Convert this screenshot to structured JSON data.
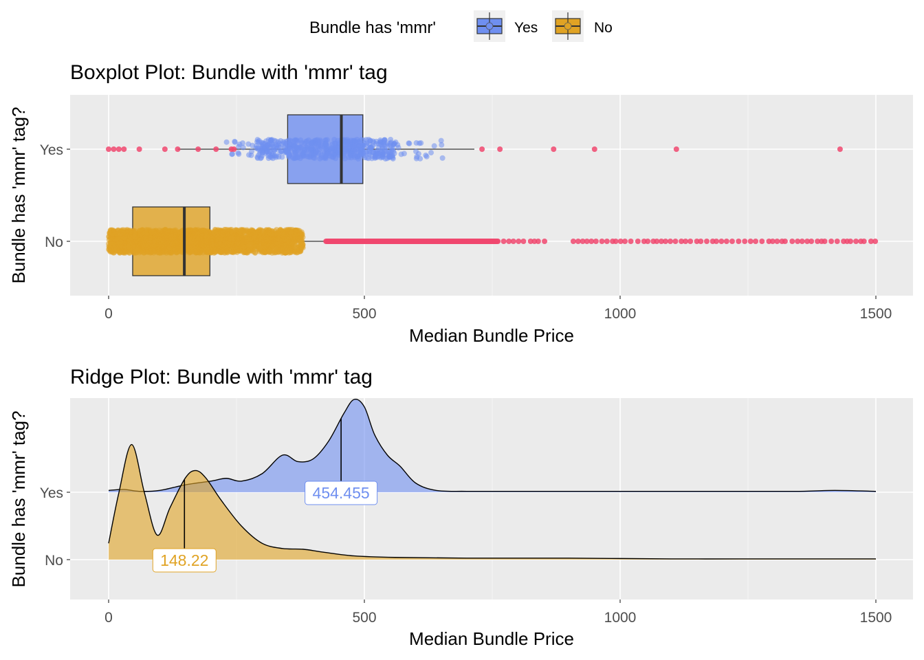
{
  "legend": {
    "title": "Bundle has 'mmr'",
    "items": [
      {
        "label": "Yes",
        "color": "#6f8ff0"
      },
      {
        "label": "No",
        "color": "#e0a324"
      }
    ]
  },
  "colors": {
    "yes": "#6f8ff0",
    "no": "#e0a324",
    "outlier": "#f0486e",
    "panel_bg": "#ebebeb",
    "grid": "#ffffff"
  },
  "chart_data": [
    {
      "type": "boxplot",
      "title": "Boxplot Plot: Bundle with 'mmr' tag",
      "xlabel": "Median Bundle Price",
      "ylabel": "Bundle has 'mmr' tag?",
      "xlim": [
        -150,
        1580
      ],
      "xticks": [
        0,
        500,
        1000,
        1500
      ],
      "categories": [
        "Yes",
        "No"
      ],
      "boxes": [
        {
          "name": "Yes",
          "whisker_low": 135,
          "q1": 350,
          "median": 455,
          "q3": 497,
          "whisker_high": 715,
          "jitter_range": [
            230,
            670
          ],
          "outliers": [
            0,
            10,
            20,
            30,
            60,
            110,
            135,
            175,
            210,
            240,
            245,
            730,
            765,
            870,
            950,
            1110,
            1430
          ]
        },
        {
          "name": "No",
          "whisker_low": 0,
          "q1": 47,
          "median": 148,
          "q3": 198,
          "whisker_high": 425,
          "jitter_range": [
            0,
            380
          ],
          "outlier_range": [
            425,
            1500
          ]
        }
      ],
      "grid": true
    },
    {
      "type": "ridge",
      "title": "Ridge Plot: Bundle with 'mmr' tag",
      "xlabel": "Median Bundle Price",
      "ylabel": "Bundle has 'mmr' tag?",
      "xlim": [
        -150,
        1580
      ],
      "xticks": [
        0,
        500,
        1000,
        1500
      ],
      "categories": [
        "Yes",
        "No"
      ],
      "series": [
        {
          "name": "Yes",
          "median_label": "454.455",
          "median": 454.455,
          "x": [
            0,
            30,
            60,
            100,
            150,
            200,
            230,
            260,
            300,
            340,
            370,
            400,
            430,
            460,
            480,
            500,
            520,
            545,
            570,
            600,
            640,
            700,
            800,
            1000,
            1200,
            1350,
            1420,
            1500
          ],
          "density": [
            0.02,
            0.03,
            0.01,
            0.02,
            0.08,
            0.12,
            0.15,
            0.12,
            0.2,
            0.4,
            0.33,
            0.36,
            0.55,
            0.85,
            1.0,
            0.92,
            0.62,
            0.4,
            0.28,
            0.1,
            0.02,
            0.01,
            0.01,
            0.01,
            0.01,
            0.01,
            0.02,
            0.01
          ]
        },
        {
          "name": "No",
          "median_label": "148.22",
          "median": 148.22,
          "x": [
            0,
            20,
            45,
            70,
            95,
            120,
            150,
            170,
            190,
            220,
            260,
            300,
            340,
            380,
            420,
            480,
            560,
            700,
            900,
            1100,
            1300,
            1500
          ],
          "density": [
            0.22,
            0.9,
            1.55,
            0.9,
            0.33,
            0.7,
            1.1,
            1.2,
            1.1,
            0.8,
            0.45,
            0.22,
            0.15,
            0.14,
            0.1,
            0.05,
            0.03,
            0.02,
            0.02,
            0.01,
            0.01,
            0.01
          ]
        }
      ],
      "grid": true
    }
  ]
}
